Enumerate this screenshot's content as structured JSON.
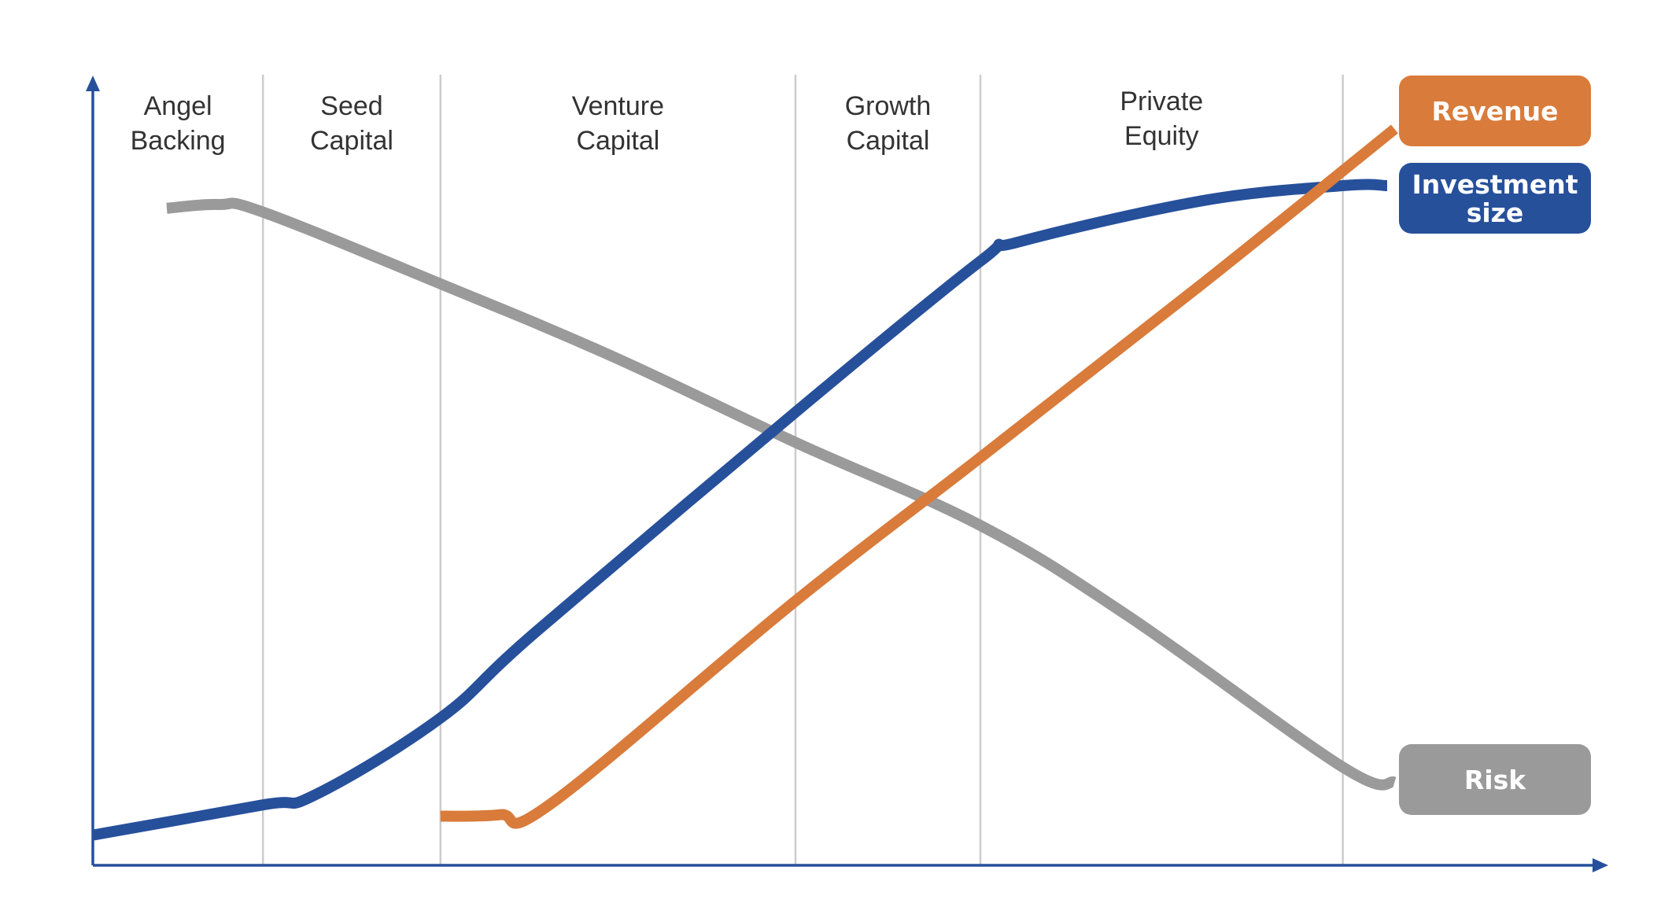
{
  "chart_data": {
    "type": "line",
    "title": "",
    "xlabel": "",
    "ylabel": "",
    "x_range": [
      0,
      20.5
    ],
    "y_range": [
      0,
      100
    ],
    "grid": "vertical stage dividers",
    "legend_placement": "right",
    "stages": [
      {
        "lines": [
          "Angel",
          "Backing"
        ],
        "start": 0,
        "end": 2.3
      },
      {
        "lines": [
          "Seed",
          "Capital"
        ],
        "start": 2.3,
        "end": 4.7
      },
      {
        "lines": [
          "Venture",
          "Capital"
        ],
        "start": 4.7,
        "end": 9.5
      },
      {
        "lines": [
          "Growth",
          "Capital"
        ],
        "start": 9.5,
        "end": 12.0
      },
      {
        "lines": [
          "Private",
          "Equity"
        ],
        "start": 12.0,
        "end": 16.9
      }
    ],
    "dividers": [
      2.3,
      4.7,
      9.5,
      12.0,
      16.9
    ],
    "series": [
      {
        "name": "Revenue",
        "color": "#d97b3a",
        "points": [
          [
            4.7,
            6.5
          ],
          [
            5.5,
            6.7
          ],
          [
            6.2,
            8.2
          ],
          [
            9.5,
            35
          ],
          [
            12.0,
            54
          ],
          [
            15.0,
            77
          ],
          [
            17.6,
            97.5
          ]
        ]
      },
      {
        "name": "Investment size",
        "color": "#27509b",
        "points": [
          [
            0,
            4
          ],
          [
            2.3,
            8
          ],
          [
            3.0,
            9.3
          ],
          [
            4.7,
            19.5
          ],
          [
            6.0,
            31
          ],
          [
            9.5,
            60
          ],
          [
            12.0,
            80
          ],
          [
            12.5,
            82.5
          ],
          [
            15.0,
            88
          ],
          [
            16.9,
            90
          ],
          [
            17.5,
            90
          ]
        ]
      },
      {
        "name": "Risk",
        "color": "#9a9a9a",
        "points": [
          [
            1.0,
            87
          ],
          [
            1.7,
            87.5
          ],
          [
            2.3,
            86.5
          ],
          [
            4.7,
            77
          ],
          [
            7.0,
            67.5
          ],
          [
            9.5,
            56
          ],
          [
            12.0,
            45
          ],
          [
            14.0,
            33
          ],
          [
            16.9,
            13
          ],
          [
            17.6,
            11
          ]
        ]
      }
    ],
    "legend": [
      {
        "label_lines": [
          "Revenue"
        ],
        "color": "#d97b3a"
      },
      {
        "label_lines": [
          "Investment",
          "size"
        ],
        "color": "#27509b"
      },
      {
        "label_lines": [
          "Risk"
        ],
        "color": "#9a9a9a"
      }
    ],
    "axis_color": "#27509b",
    "divider_color": "#cccccc"
  }
}
